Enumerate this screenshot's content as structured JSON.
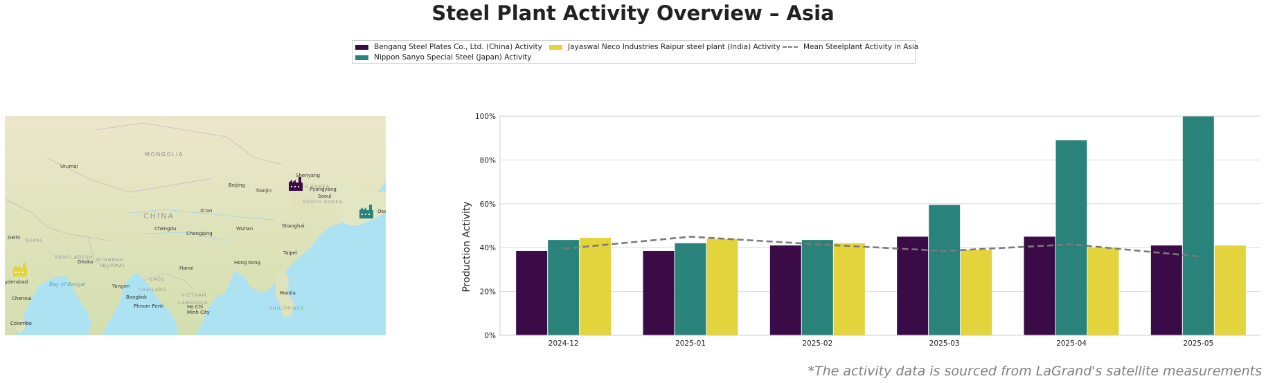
{
  "title": "Steel Plant Activity Overview – Asia",
  "source_note": "*The activity data is sourced from LaGrand's satellite measurements",
  "colors": {
    "bengang": "#3b0b47",
    "nippon": "#2a837b",
    "jayaswal": "#e3d33c",
    "mean": "#7a7a7a"
  },
  "legend": [
    {
      "label": "Bengang Steel Plates Co., Ltd. (China) Activity",
      "color": "#3b0b47",
      "kind": "bar"
    },
    {
      "label": "Nippon Sanyo Special Steel (Japan) Activity",
      "color": "#2a837b",
      "kind": "bar"
    },
    {
      "label": "Jayaswal Neco Industries Raipur steel plant (India) Activity",
      "color": "#e3d33c",
      "kind": "bar"
    },
    {
      "label": "Mean Steelplant Activity in Asia",
      "color": "#7a7a7a",
      "kind": "dashed-line"
    }
  ],
  "map": {
    "labels": {
      "mongolia": "MONGOLIA",
      "china": "CHINA",
      "nepal": "NEPAL",
      "bangladesh": "BANGLADESH",
      "myanmar": "MYANMAR",
      "burma": "(BURMA)",
      "thailand": "THAILAND",
      "laos": "LAOS",
      "vietnam": "VIETNAM",
      "cambodia": "CAMBODIA",
      "philippines": "PHILIPPINES",
      "south_korea": "SOUTH KOREA",
      "north_korea": "TH KOREA",
      "bay_of_bengal": "Bay of Bengal",
      "urumqi": "Urumqi",
      "beijing": "Beijing",
      "tianjin": "Tianjin",
      "shenyang": "Shenyang",
      "pyongyang": "Pyongyang",
      "seoul": "Seoul",
      "xian": "Xi'an",
      "wuhan": "Wuhan",
      "shanghai": "Shanghai",
      "chengdu": "Chengdu",
      "chongqing": "Chongqing",
      "delhi": "Delhi",
      "dhaka": "Dhaka",
      "taipei": "Taipei",
      "hanoi": "Hanoi",
      "hong_kong": "Hong Kong",
      "yangon": "Yangon",
      "bangkok": "Bangkok",
      "phnom_penh": "Phnom Penh",
      "ho_chi": "Ho Chi",
      "minh_city": "Minh City",
      "manila": "Manila",
      "chennai": "Chennai",
      "hyderabad": "yderabad",
      "colombo": "Colombo",
      "osaka": "Osa"
    }
  },
  "chart_data": {
    "type": "bar",
    "categories": [
      "2024-12",
      "2025-01",
      "2025-02",
      "2025-03",
      "2025-04",
      "2025-05"
    ],
    "series": [
      {
        "name": "Bengang Steel Plates Co., Ltd. (China) Activity",
        "values": [
          38.5,
          38.5,
          41,
          45,
          45,
          41
        ]
      },
      {
        "name": "Nippon Sanyo Special Steel (Japan) Activity",
        "values": [
          43.5,
          42,
          43.5,
          59.5,
          89,
          100
        ]
      },
      {
        "name": "Jayaswal Neco Industries Raipur steel plant (India) Activity",
        "values": [
          44.5,
          44,
          42,
          39,
          40,
          41
        ]
      }
    ],
    "mean_line": {
      "name": "Mean Steelplant Activity in Asia",
      "values": [
        39.5,
        45,
        41.5,
        38.5,
        41.5,
        36
      ]
    },
    "ylabel": "Production Activity",
    "xlabel": "",
    "ylim": [
      0,
      100
    ],
    "yticks": [
      "0%",
      "20%",
      "40%",
      "60%",
      "80%",
      "100%"
    ],
    "grid": true,
    "legend_position": "top-center"
  }
}
